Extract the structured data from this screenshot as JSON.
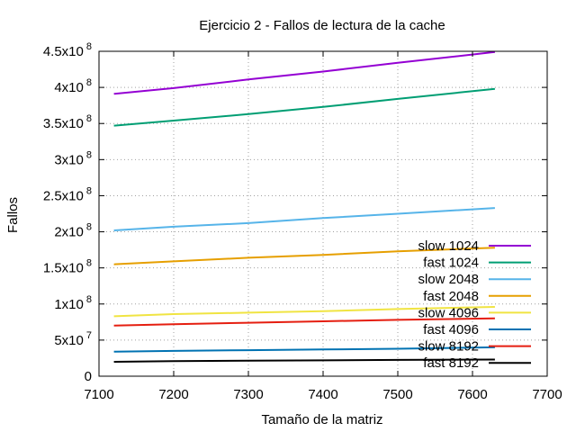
{
  "chart_data": {
    "type": "line",
    "title": "Ejercicio 2 - Fallos de lectura de la cache",
    "xlabel": "Tamaño de la matriz",
    "ylabel": "Fallos",
    "xlim": [
      7100,
      7700
    ],
    "ylim": [
      0,
      450000000
    ],
    "grid": true,
    "legend_position": "bottom-right",
    "x_ticks": [
      {
        "value": 7100,
        "label": "7100"
      },
      {
        "value": 7200,
        "label": "7200"
      },
      {
        "value": 7300,
        "label": "7300"
      },
      {
        "value": 7400,
        "label": "7400"
      },
      {
        "value": 7500,
        "label": "7500"
      },
      {
        "value": 7600,
        "label": "7600"
      },
      {
        "value": 7700,
        "label": "7700"
      }
    ],
    "y_ticks": [
      {
        "value": 0,
        "mantissa": "0",
        "exponent": ""
      },
      {
        "value": 50000000,
        "mantissa": "5x10",
        "exponent": "7"
      },
      {
        "value": 100000000,
        "mantissa": "1x10",
        "exponent": "8"
      },
      {
        "value": 150000000,
        "mantissa": "1.5x10",
        "exponent": "8"
      },
      {
        "value": 200000000,
        "mantissa": "2x10",
        "exponent": "8"
      },
      {
        "value": 250000000,
        "mantissa": "2.5x10",
        "exponent": "8"
      },
      {
        "value": 300000000,
        "mantissa": "3x10",
        "exponent": "8"
      },
      {
        "value": 350000000,
        "mantissa": "3.5x10",
        "exponent": "8"
      },
      {
        "value": 400000000,
        "mantissa": "4x10",
        "exponent": "8"
      },
      {
        "value": 450000000,
        "mantissa": "4.5x10",
        "exponent": "8"
      }
    ],
    "series": [
      {
        "name": "slow 1024",
        "color": "#9400d3",
        "points": [
          [
            7120,
            391000000
          ],
          [
            7200,
            399000000
          ],
          [
            7300,
            411000000
          ],
          [
            7400,
            422000000
          ],
          [
            7500,
            434000000
          ],
          [
            7630,
            449000000
          ]
        ]
      },
      {
        "name": "fast 1024",
        "color": "#009e73",
        "points": [
          [
            7120,
            347000000
          ],
          [
            7200,
            354000000
          ],
          [
            7300,
            363000000
          ],
          [
            7400,
            373000000
          ],
          [
            7500,
            384000000
          ],
          [
            7630,
            398000000
          ]
        ]
      },
      {
        "name": "slow 2048",
        "color": "#56b4e9",
        "points": [
          [
            7120,
            202000000
          ],
          [
            7200,
            207000000
          ],
          [
            7300,
            212000000
          ],
          [
            7400,
            219000000
          ],
          [
            7500,
            225000000
          ],
          [
            7630,
            233000000
          ]
        ]
      },
      {
        "name": "fast 2048",
        "color": "#e69f00",
        "points": [
          [
            7120,
            155000000
          ],
          [
            7200,
            159000000
          ],
          [
            7300,
            164000000
          ],
          [
            7400,
            168000000
          ],
          [
            7500,
            173000000
          ],
          [
            7630,
            178000000
          ]
        ]
      },
      {
        "name": "slow 4096",
        "color": "#f0e442",
        "points": [
          [
            7120,
            83000000
          ],
          [
            7200,
            86000000
          ],
          [
            7300,
            88000000
          ],
          [
            7400,
            90000000
          ],
          [
            7500,
            93000000
          ],
          [
            7630,
            96000000
          ]
        ]
      },
      {
        "name": "fast 4096",
        "color": "#0072b2",
        "points": [
          [
            7120,
            34000000
          ],
          [
            7200,
            35000000
          ],
          [
            7300,
            36000000
          ],
          [
            7400,
            37000000
          ],
          [
            7500,
            38000000
          ],
          [
            7630,
            40000000
          ]
        ]
      },
      {
        "name": "slow 8192",
        "color": "#e51e10",
        "points": [
          [
            7120,
            70000000
          ],
          [
            7200,
            72000000
          ],
          [
            7300,
            74000000
          ],
          [
            7400,
            76000000
          ],
          [
            7500,
            78000000
          ],
          [
            7630,
            80000000
          ]
        ]
      },
      {
        "name": "fast 8192",
        "color": "#000000",
        "points": [
          [
            7120,
            20000000
          ],
          [
            7200,
            21000000
          ],
          [
            7300,
            21500000
          ],
          [
            7400,
            22000000
          ],
          [
            7500,
            22500000
          ],
          [
            7630,
            23000000
          ]
        ]
      }
    ]
  }
}
